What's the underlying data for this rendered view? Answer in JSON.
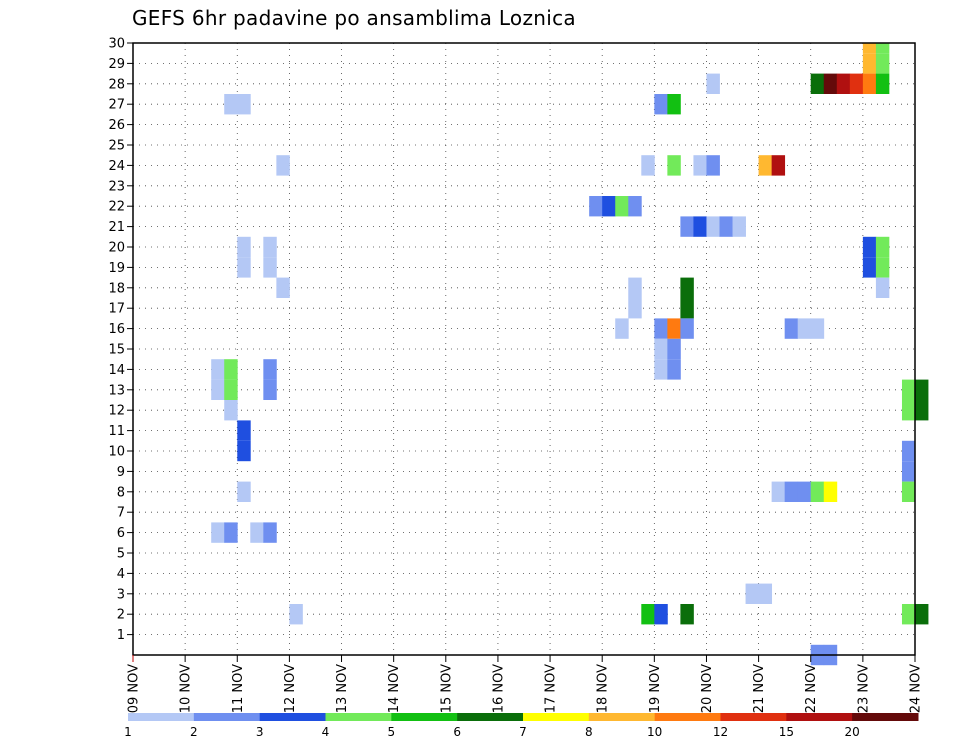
{
  "chart_data": {
    "type": "heatmap",
    "title": "GEFS 6hr padavine po ansamblima Loznica",
    "xlabel": "",
    "ylabel": "",
    "x_axis_unit": "day index (0 = 09 NOV, 15 = 24 NOV), 6-hourly steps",
    "xlim": [
      0,
      15
    ],
    "ylim": [
      0,
      30
    ],
    "grid": true,
    "x_ticks": [
      {
        "value": 0,
        "label": "09 NOV"
      },
      {
        "value": 1,
        "label": "10 NOV"
      },
      {
        "value": 2,
        "label": "11 NOV"
      },
      {
        "value": 3,
        "label": "12 NOV"
      },
      {
        "value": 4,
        "label": "13 NOV"
      },
      {
        "value": 5,
        "label": "14 NOV"
      },
      {
        "value": 6,
        "label": "15 NOV"
      },
      {
        "value": 7,
        "label": "16 NOV"
      },
      {
        "value": 8,
        "label": "17 NOV"
      },
      {
        "value": 9,
        "label": "18 NOV"
      },
      {
        "value": 10,
        "label": "19 NOV"
      },
      {
        "value": 11,
        "label": "20 NOV"
      },
      {
        "value": 12,
        "label": "21 NOV"
      },
      {
        "value": 13,
        "label": "22 NOV"
      },
      {
        "value": 14,
        "label": "23 NOV"
      },
      {
        "value": 15,
        "label": "24 NOV"
      }
    ],
    "y_ticks": [
      "1",
      "2",
      "3",
      "4",
      "5",
      "6",
      "7",
      "8",
      "9",
      "10",
      "11",
      "12",
      "13",
      "14",
      "15",
      "16",
      "17",
      "18",
      "19",
      "20",
      "21",
      "22",
      "23",
      "24",
      "25",
      "26",
      "27",
      "28",
      "29",
      "30"
    ],
    "legend": {
      "placement": "bottom",
      "labels": [
        "1",
        "2",
        "3",
        "4",
        "5",
        "6",
        "7",
        "8",
        "10",
        "12",
        "15",
        "20"
      ],
      "colors": [
        "#b4c8f5",
        "#6f8ff0",
        "#1f4fe0",
        "#72ea5a",
        "#12c012",
        "#0a6e0a",
        "#ffff00",
        "#ffb830",
        "#ff7a10",
        "#e03010",
        "#b01010",
        "#640a0a"
      ]
    },
    "cells": [
      {
        "member": 30,
        "t": 14.0,
        "c": 7
      },
      {
        "member": 30,
        "t": 14.25,
        "c": 3
      },
      {
        "member": 29,
        "t": 14.0,
        "c": 7
      },
      {
        "member": 29,
        "t": 14.25,
        "c": 3
      },
      {
        "member": 28,
        "t": 11.0,
        "c": 0
      },
      {
        "member": 28,
        "t": 13.0,
        "c": 5
      },
      {
        "member": 28,
        "t": 13.25,
        "c": 11
      },
      {
        "member": 28,
        "t": 13.5,
        "c": 10
      },
      {
        "member": 28,
        "t": 13.75,
        "c": 9
      },
      {
        "member": 28,
        "t": 14.0,
        "c": 8
      },
      {
        "member": 28,
        "t": 14.25,
        "c": 4
      },
      {
        "member": 27,
        "t": 1.75,
        "c": 0
      },
      {
        "member": 27,
        "t": 2.0,
        "c": 0
      },
      {
        "member": 27,
        "t": 10.0,
        "c": 1
      },
      {
        "member": 27,
        "t": 10.25,
        "c": 4
      },
      {
        "member": 24,
        "t": 2.75,
        "c": 0
      },
      {
        "member": 24,
        "t": 9.75,
        "c": 0
      },
      {
        "member": 24,
        "t": 10.25,
        "c": 3
      },
      {
        "member": 24,
        "t": 10.75,
        "c": 0
      },
      {
        "member": 24,
        "t": 11.0,
        "c": 1
      },
      {
        "member": 24,
        "t": 12.0,
        "c": 7
      },
      {
        "member": 24,
        "t": 12.25,
        "c": 10
      },
      {
        "member": 22,
        "t": 8.75,
        "c": 1
      },
      {
        "member": 22,
        "t": 9.0,
        "c": 2
      },
      {
        "member": 22,
        "t": 9.25,
        "c": 3
      },
      {
        "member": 22,
        "t": 9.5,
        "c": 1
      },
      {
        "member": 21,
        "t": 10.5,
        "c": 1
      },
      {
        "member": 21,
        "t": 10.75,
        "c": 2
      },
      {
        "member": 21,
        "t": 11.0,
        "c": 0
      },
      {
        "member": 21,
        "t": 11.25,
        "c": 1
      },
      {
        "member": 21,
        "t": 11.5,
        "c": 0
      },
      {
        "member": 20,
        "t": 2.0,
        "c": 0
      },
      {
        "member": 20,
        "t": 2.5,
        "c": 0
      },
      {
        "member": 20,
        "t": 14.0,
        "c": 2
      },
      {
        "member": 20,
        "t": 14.25,
        "c": 3
      },
      {
        "member": 19,
        "t": 2.0,
        "c": 0
      },
      {
        "member": 19,
        "t": 2.5,
        "c": 0
      },
      {
        "member": 19,
        "t": 14.0,
        "c": 2
      },
      {
        "member": 19,
        "t": 14.25,
        "c": 3
      },
      {
        "member": 18,
        "t": 2.75,
        "c": 0
      },
      {
        "member": 18,
        "t": 9.5,
        "c": 0
      },
      {
        "member": 18,
        "t": 10.5,
        "c": 5
      },
      {
        "member": 18,
        "t": 14.25,
        "c": 0
      },
      {
        "member": 17,
        "t": 9.5,
        "c": 0
      },
      {
        "member": 17,
        "t": 10.5,
        "c": 5
      },
      {
        "member": 16,
        "t": 9.25,
        "c": 0
      },
      {
        "member": 16,
        "t": 10.0,
        "c": 1
      },
      {
        "member": 16,
        "t": 10.25,
        "c": 8
      },
      {
        "member": 16,
        "t": 10.5,
        "c": 1
      },
      {
        "member": 16,
        "t": 12.5,
        "c": 1
      },
      {
        "member": 16,
        "t": 12.75,
        "c": 0
      },
      {
        "member": 16,
        "t": 13.0,
        "c": 0
      },
      {
        "member": 15,
        "t": 10.0,
        "c": 0
      },
      {
        "member": 15,
        "t": 10.25,
        "c": 1
      },
      {
        "member": 14,
        "t": 1.5,
        "c": 0
      },
      {
        "member": 14,
        "t": 1.75,
        "c": 3
      },
      {
        "member": 14,
        "t": 2.5,
        "c": 1
      },
      {
        "member": 14,
        "t": 10.0,
        "c": 0
      },
      {
        "member": 14,
        "t": 10.25,
        "c": 1
      },
      {
        "member": 13,
        "t": 1.5,
        "c": 0
      },
      {
        "member": 13,
        "t": 1.75,
        "c": 3
      },
      {
        "member": 13,
        "t": 2.5,
        "c": 1
      },
      {
        "member": 13,
        "t": 14.75,
        "c": 3
      },
      {
        "member": 13,
        "t": 15.0,
        "c": 5
      },
      {
        "member": 12,
        "t": 1.75,
        "c": 0
      },
      {
        "member": 12,
        "t": 14.75,
        "c": 3
      },
      {
        "member": 12,
        "t": 15.0,
        "c": 5
      },
      {
        "member": 11,
        "t": 2.0,
        "c": 2
      },
      {
        "member": 10,
        "t": 2.0,
        "c": 2
      },
      {
        "member": 10,
        "t": 14.75,
        "c": 1
      },
      {
        "member": 9,
        "t": 14.75,
        "c": 1
      },
      {
        "member": 8,
        "t": 2.0,
        "c": 0
      },
      {
        "member": 8,
        "t": 12.25,
        "c": 0
      },
      {
        "member": 8,
        "t": 12.5,
        "c": 1
      },
      {
        "member": 8,
        "t": 12.75,
        "c": 1
      },
      {
        "member": 8,
        "t": 13.0,
        "c": 3
      },
      {
        "member": 8,
        "t": 13.25,
        "c": 6
      },
      {
        "member": 8,
        "t": 14.75,
        "c": 3
      },
      {
        "member": 6,
        "t": 1.5,
        "c": 0
      },
      {
        "member": 6,
        "t": 1.75,
        "c": 1
      },
      {
        "member": 6,
        "t": 2.25,
        "c": 0
      },
      {
        "member": 6,
        "t": 2.5,
        "c": 1
      },
      {
        "member": 3,
        "t": 11.75,
        "c": 0
      },
      {
        "member": 3,
        "t": 12.0,
        "c": 0
      },
      {
        "member": 2,
        "t": 3.0,
        "c": 0
      },
      {
        "member": 2,
        "t": 9.75,
        "c": 4
      },
      {
        "member": 2,
        "t": 10.0,
        "c": 2
      },
      {
        "member": 2,
        "t": 10.5,
        "c": 5
      },
      {
        "member": 2,
        "t": 14.75,
        "c": 3
      },
      {
        "member": 2,
        "t": 15.0,
        "c": 5
      },
      {
        "member": 0,
        "t": 13.0,
        "c": 1
      },
      {
        "member": 0,
        "t": 13.25,
        "c": 1
      }
    ]
  }
}
